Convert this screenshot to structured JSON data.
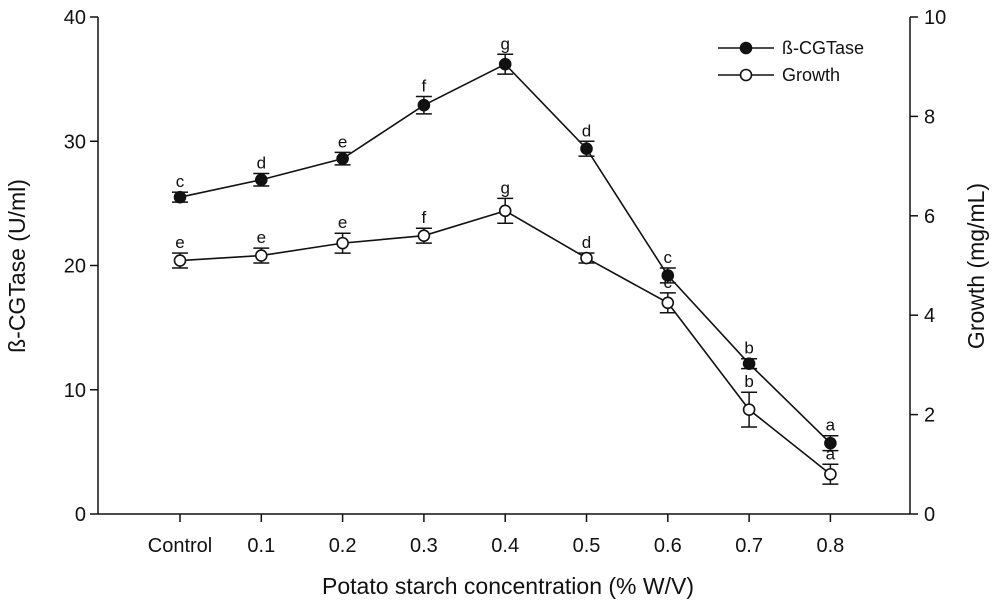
{
  "chart_data": {
    "type": "line",
    "categories": [
      "Control",
      "0.1",
      "0.2",
      "0.3",
      "0.4",
      "0.5",
      "0.6",
      "0.7",
      "0.8"
    ],
    "xlabel": "Potato starch concentration (% W/V)",
    "ylabel": "ß-CGTase (U/ml)",
    "ylabel_right": "Growth (mg/mL)",
    "ylim": [
      0,
      40
    ],
    "ylim_right": [
      0,
      10
    ],
    "yticks": [
      0,
      10,
      20,
      30,
      40
    ],
    "yticks_right": [
      0,
      2,
      4,
      6,
      8,
      10
    ],
    "legend_position": "top-right",
    "series": [
      {
        "name": "ß-CGTase",
        "axis": "left",
        "marker": "filled-circle",
        "values": [
          25.5,
          26.9,
          28.6,
          32.9,
          36.2,
          29.4,
          19.2,
          12.1,
          5.7
        ],
        "errors": [
          0.4,
          0.5,
          0.5,
          0.7,
          0.8,
          0.6,
          0.6,
          0.4,
          0.6
        ],
        "labels": [
          "c",
          "d",
          "e",
          "f",
          "g",
          "d",
          "c",
          "b",
          "a"
        ]
      },
      {
        "name": "Growth",
        "axis": "right",
        "marker": "open-circle",
        "values": [
          5.1,
          5.2,
          5.45,
          5.6,
          6.1,
          5.15,
          4.25,
          2.1,
          0.8
        ],
        "errors": [
          0.15,
          0.15,
          0.2,
          0.15,
          0.25,
          0.1,
          0.2,
          0.35,
          0.2
        ],
        "labels": [
          "e",
          "e",
          "e",
          "f",
          "g",
          "d",
          "c",
          "b",
          "a"
        ]
      }
    ]
  }
}
